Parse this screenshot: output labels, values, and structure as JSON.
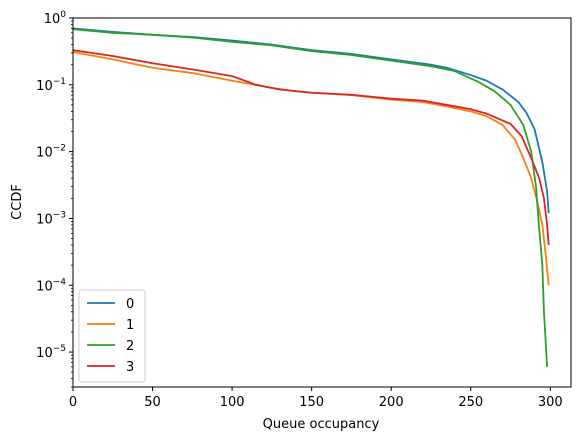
{
  "chart_data": {
    "type": "line",
    "xlabel": "Queue occupancy",
    "ylabel": "CCDF",
    "xscale": "linear",
    "yscale": "log",
    "xlim": [
      0,
      313
    ],
    "ylim": [
      3e-06,
      1
    ],
    "x_ticks": [
      0,
      50,
      100,
      150,
      200,
      250,
      300
    ],
    "x_tick_labels": [
      "0",
      "50",
      "100",
      "150",
      "200",
      "250",
      "300"
    ],
    "y_ticks": [
      1e-05,
      0.0001,
      0.001,
      0.01,
      0.1,
      1
    ],
    "y_tick_labels": [
      {
        "base": "10",
        "exp": "−5"
      },
      {
        "base": "10",
        "exp": "−4"
      },
      {
        "base": "10",
        "exp": "−3"
      },
      {
        "base": "10",
        "exp": "−2"
      },
      {
        "base": "10",
        "exp": "−1"
      },
      {
        "base": "10",
        "exp": "0"
      }
    ],
    "grid": false,
    "legend_position": "lower-left",
    "series": [
      {
        "name": "0",
        "color": "#1f77b4",
        "points": [
          [
            0,
            0.7
          ],
          [
            25,
            0.62
          ],
          [
            50,
            0.56
          ],
          [
            75,
            0.52
          ],
          [
            100,
            0.46
          ],
          [
            125,
            0.4
          ],
          [
            150,
            0.33
          ],
          [
            175,
            0.29
          ],
          [
            200,
            0.24
          ],
          [
            225,
            0.2
          ],
          [
            235,
            0.18
          ],
          [
            250,
            0.14
          ],
          [
            260,
            0.115
          ],
          [
            270,
            0.085
          ],
          [
            280,
            0.055
          ],
          [
            285,
            0.038
          ],
          [
            290,
            0.022
          ],
          [
            295,
            0.007
          ],
          [
            298,
            0.0025
          ],
          [
            299,
            0.0012
          ]
        ]
      },
      {
        "name": "1",
        "color": "#ff7f0e",
        "points": [
          [
            0,
            0.31
          ],
          [
            25,
            0.24
          ],
          [
            50,
            0.18
          ],
          [
            75,
            0.15
          ],
          [
            100,
            0.115
          ],
          [
            125,
            0.09
          ],
          [
            140,
            0.08
          ],
          [
            150,
            0.076
          ],
          [
            175,
            0.07
          ],
          [
            200,
            0.06
          ],
          [
            220,
            0.055
          ],
          [
            230,
            0.05
          ],
          [
            250,
            0.04
          ],
          [
            260,
            0.034
          ],
          [
            270,
            0.025
          ],
          [
            278,
            0.015
          ],
          [
            283,
            0.008
          ],
          [
            288,
            0.004
          ],
          [
            292,
            0.0017
          ],
          [
            295,
            0.0008
          ],
          [
            297,
            0.0003
          ],
          [
            299,
            0.0001
          ]
        ]
      },
      {
        "name": "2",
        "color": "#2ca02c",
        "points": [
          [
            0,
            0.68
          ],
          [
            25,
            0.6
          ],
          [
            50,
            0.56
          ],
          [
            75,
            0.51
          ],
          [
            100,
            0.44
          ],
          [
            125,
            0.39
          ],
          [
            150,
            0.32
          ],
          [
            175,
            0.28
          ],
          [
            200,
            0.23
          ],
          [
            225,
            0.19
          ],
          [
            240,
            0.16
          ],
          [
            255,
            0.11
          ],
          [
            265,
            0.08
          ],
          [
            275,
            0.05
          ],
          [
            283,
            0.025
          ],
          [
            288,
            0.01
          ],
          [
            291,
            0.003
          ],
          [
            293,
            0.0007
          ],
          [
            295,
            0.0002
          ],
          [
            296,
            4e-05
          ],
          [
            298,
            6e-06
          ]
        ]
      },
      {
        "name": "3",
        "color": "#d62728",
        "points": [
          [
            0,
            0.33
          ],
          [
            25,
            0.27
          ],
          [
            50,
            0.21
          ],
          [
            75,
            0.17
          ],
          [
            100,
            0.135
          ],
          [
            115,
            0.1
          ],
          [
            130,
            0.085
          ],
          [
            150,
            0.076
          ],
          [
            175,
            0.071
          ],
          [
            200,
            0.062
          ],
          [
            220,
            0.058
          ],
          [
            235,
            0.05
          ],
          [
            250,
            0.043
          ],
          [
            260,
            0.037
          ],
          [
            275,
            0.026
          ],
          [
            282,
            0.017
          ],
          [
            288,
            0.008
          ],
          [
            293,
            0.004
          ],
          [
            296,
            0.002
          ],
          [
            298,
            0.0008
          ],
          [
            299,
            0.0004
          ]
        ]
      }
    ]
  }
}
